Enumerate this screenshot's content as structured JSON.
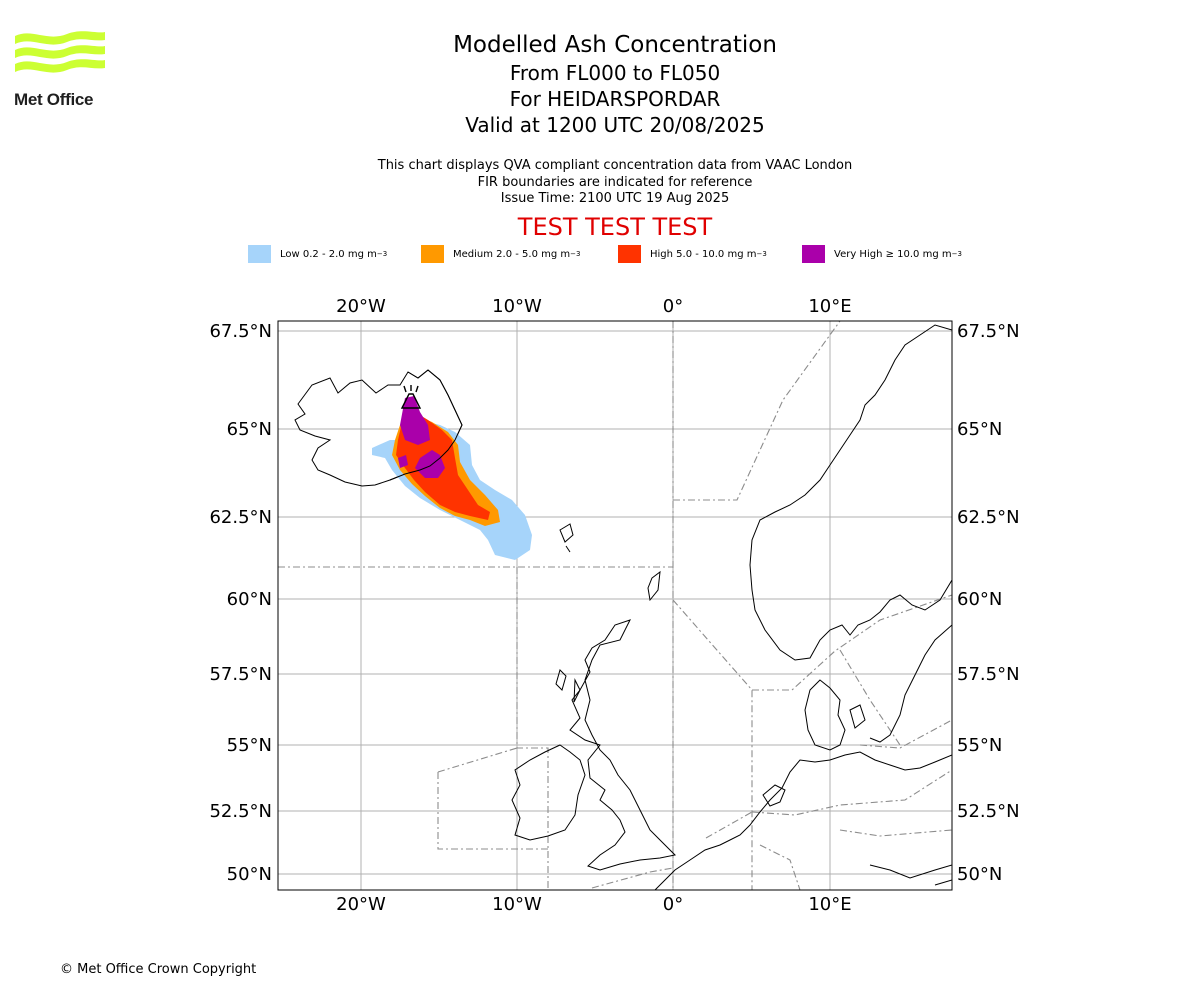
{
  "logo": {
    "text": "Met Office",
    "color": "#ccff33"
  },
  "title": {
    "main": "Modelled Ash Concentration",
    "levels": "From FL000 to FL050",
    "volcano": "For HEIDARSPORDAR",
    "valid": "Valid at 1200 UTC 20/08/2025"
  },
  "description": {
    "line1": "This chart displays QVA compliant concentration data from VAAC London",
    "line2": "FIR boundaries are indicated for reference",
    "issue": "Issue Time: 2100 UTC 19 Aug 2025"
  },
  "test_banner": "TEST TEST TEST",
  "legend": [
    {
      "label": "Low 0.2 - 2.0 mg m",
      "color": "#a6d4fa"
    },
    {
      "label": "Medium 2.0 - 5.0 mg m",
      "color": "#ff9900"
    },
    {
      "label": "High 5.0 - 10.0 mg m",
      "color": "#ff3300"
    },
    {
      "label": "Very High ≥ 10.0 mg m",
      "color": "#aa00aa"
    }
  ],
  "legend_unit_exponent": "−3",
  "map": {
    "lon_ticks": [
      "20°W",
      "10°W",
      "0°",
      "10°E"
    ],
    "lat_ticks": [
      "67.5°N",
      "65°N",
      "62.5°N",
      "60°N",
      "57.5°N",
      "55°N",
      "52.5°N",
      "50°N"
    ]
  },
  "copyright": "© Met Office Crown Copyright"
}
